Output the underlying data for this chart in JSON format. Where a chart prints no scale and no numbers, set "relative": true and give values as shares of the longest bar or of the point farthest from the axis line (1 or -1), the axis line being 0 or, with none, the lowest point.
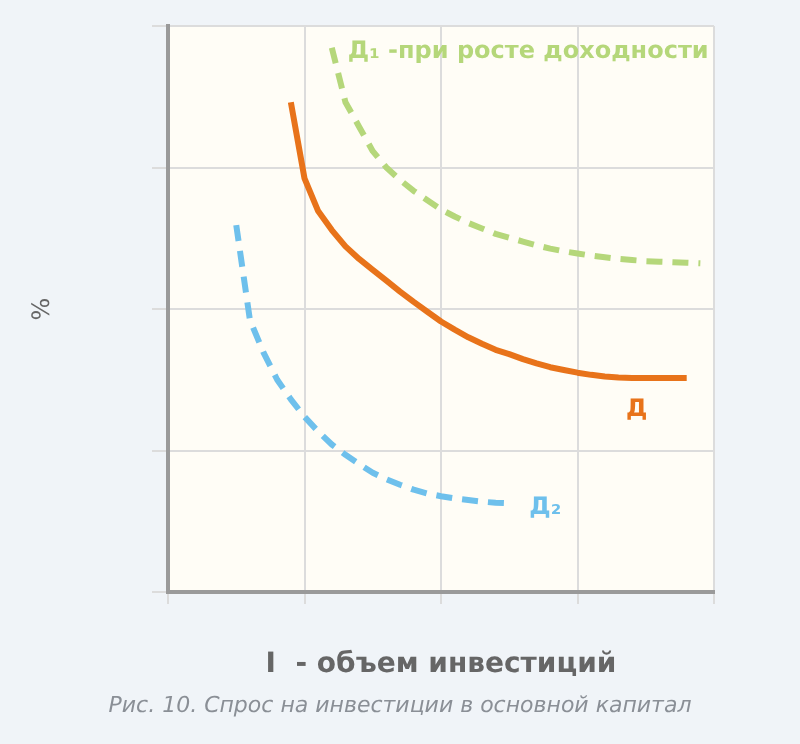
{
  "chart_data": {
    "type": "line",
    "relative": true,
    "xlabel": "I  - объем инвестиций",
    "ylabel": "%",
    "annotations": [
      "Рис. 10. Спрос на инвестиции в основной капитал"
    ],
    "categories": [
      null,
      null,
      null,
      null,
      null,
      null,
      null,
      null,
      null,
      null,
      null,
      null,
      null,
      null,
      null,
      null,
      null,
      null,
      null,
      null,
      null,
      null,
      null,
      null,
      null,
      null,
      null,
      null,
      null,
      null,
      null,
      null,
      null,
      null,
      null,
      null,
      null,
      null,
      null,
      null,
      null
    ],
    "grid": true,
    "marker": "none",
    "series": [
      {
        "name": "Д₁ -при росте доходности",
        "color": "#b5d77a",
        "line_style": "dashed",
        "values": [
          null,
          null,
          null,
          null,
          null,
          null,
          null,
          null,
          null,
          null,
          null,
          null,
          1,
          0.9,
          0.855,
          0.81,
          0.78,
          0.757,
          0.737,
          0.72,
          0.703,
          0.69,
          0.678,
          0.668,
          0.658,
          0.651,
          0.644,
          0.637,
          0.631,
          0.626,
          0.622,
          0.618,
          0.615,
          0.612,
          0.61,
          0.608,
          0.607,
          0.606,
          0.605,
          0.604,
          null
        ]
      },
      {
        "name": "Д",
        "color": "#e8731a",
        "line_style": "solid",
        "values": [
          null,
          null,
          null,
          null,
          null,
          null,
          null,
          null,
          null,
          0.9,
          0.76,
          0.7,
          0.665,
          0.635,
          0.612,
          0.592,
          0.572,
          0.552,
          0.533,
          0.515,
          0.497,
          0.482,
          0.468,
          0.456,
          0.445,
          0.437,
          0.428,
          0.42,
          0.413,
          0.408,
          0.403,
          0.399,
          0.396,
          0.394,
          0.393,
          0.393,
          0.393,
          0.393,
          0.393,
          null,
          null
        ]
      },
      {
        "name": "Д₂",
        "color": "#6ec0ec",
        "line_style": "dashed",
        "values": [
          null,
          null,
          null,
          null,
          null,
          0.674,
          0.5,
          0.44,
          0.39,
          0.354,
          0.322,
          0.295,
          0.271,
          0.252,
          0.235,
          0.219,
          0.207,
          0.197,
          0.188,
          0.181,
          0.176,
          0.172,
          0.169,
          0.166,
          0.164,
          0.163,
          null,
          null,
          null,
          null,
          null,
          null,
          null,
          null,
          null,
          null,
          null,
          null,
          null,
          null,
          null
        ]
      }
    ]
  }
}
